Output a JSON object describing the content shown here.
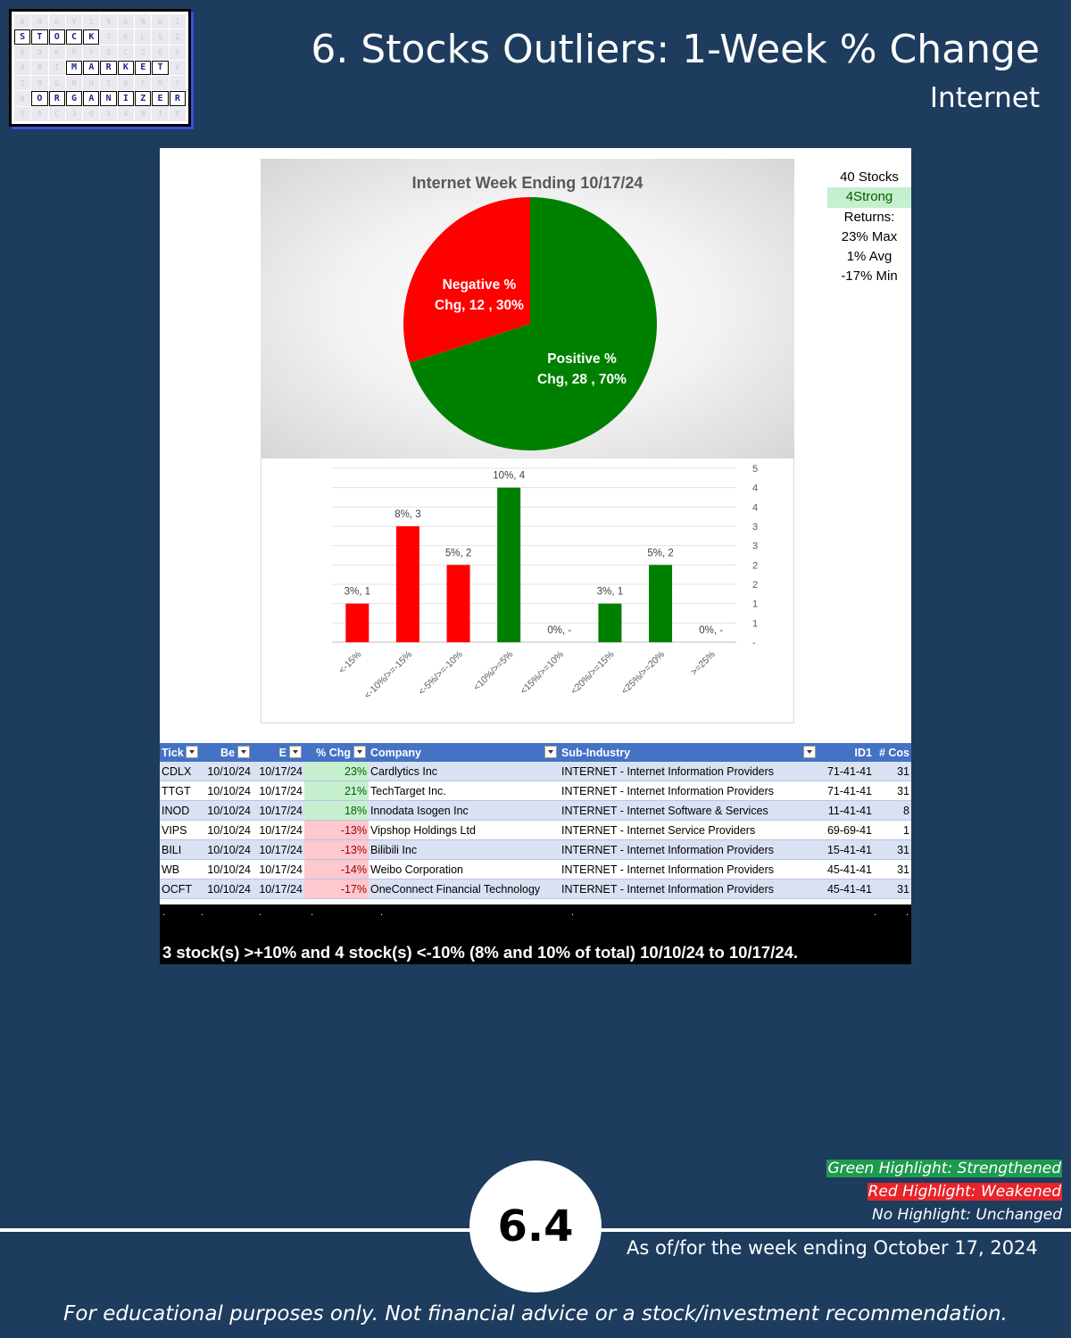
{
  "header": {
    "title": "6. Stocks Outliers: 1-Week % Change",
    "subtitle": "Internet"
  },
  "logo": {
    "row1": [
      "S",
      "T",
      "O",
      "C",
      "K"
    ],
    "row2": [
      "M",
      "A",
      "R",
      "K",
      "E",
      "T"
    ],
    "row3": [
      "O",
      "R",
      "G",
      "A",
      "N",
      "I",
      "Z",
      "E",
      "R"
    ]
  },
  "stats": {
    "stocks": "40 Stocks",
    "strong": "4Strong",
    "returns_label": "Returns:",
    "max": "23% Max",
    "avg": "1% Avg",
    "min": "-17% Min"
  },
  "chart_data": [
    {
      "type": "pie",
      "title": "Internet Week Ending 10/17/24",
      "slices": [
        {
          "name": "Positive % Chg",
          "label_line1": "Positive %",
          "label_line2": "Chg,  28 , 70%",
          "value": 28,
          "pct": 70,
          "color": "#008000"
        },
        {
          "name": "Negative % Chg",
          "label_line1": "Negative %",
          "label_line2": "Chg,  12 , 30%",
          "value": 12,
          "pct": 30,
          "color": "#ff0000"
        }
      ]
    },
    {
      "type": "bar",
      "categories": [
        "<-15%",
        "<-10%/>=-15%",
        "<-5%/>=-10%",
        "<10%/>=5%",
        "<15%/>=10%",
        "<20%/>=15%",
        "<25%/>=20%",
        ">=25%"
      ],
      "values": [
        1,
        3,
        2,
        4,
        0,
        1,
        2,
        0
      ],
      "data_labels": [
        "3%,  1",
        "8%,  3",
        "5%,  2",
        "10%,  4",
        "0%,  -",
        "3%,  1",
        "5%,  2",
        "0%,  -"
      ],
      "colors": [
        "#ff0000",
        "#ff0000",
        "#ff0000",
        "#008000",
        "#008000",
        "#008000",
        "#008000",
        "#008000"
      ],
      "ylim": [
        0,
        4.5
      ],
      "ytick_labels": [
        "-",
        "1",
        "1",
        "2",
        "2",
        "3",
        "3",
        "4",
        "4",
        "5"
      ],
      "y_axis_position": "right",
      "grid": true
    }
  ],
  "table": {
    "headers": [
      "Tick",
      "Be",
      "E",
      "% Chg",
      "Company",
      "Sub-Industry",
      "ID1",
      "# Cos"
    ],
    "rows": [
      {
        "tick": "CDLX",
        "begin": "10/10/24",
        "end": "10/17/24",
        "chg": "23%",
        "dir": "pos",
        "company": "Cardlytics Inc",
        "sub": "INTERNET - Internet Information Providers",
        "id1": "71-41-41",
        "cos": "31"
      },
      {
        "tick": "TTGT",
        "begin": "10/10/24",
        "end": "10/17/24",
        "chg": "21%",
        "dir": "pos",
        "company": "TechTarget Inc.",
        "sub": "INTERNET - Internet Information Providers",
        "id1": "71-41-41",
        "cos": "31"
      },
      {
        "tick": "INOD",
        "begin": "10/10/24",
        "end": "10/17/24",
        "chg": "18%",
        "dir": "pos",
        "company": "Innodata Isogen Inc",
        "sub": "INTERNET - Internet Software & Services",
        "id1": "11-41-41",
        "cos": "8"
      },
      {
        "tick": "VIPS",
        "begin": "10/10/24",
        "end": "10/17/24",
        "chg": "-13%",
        "dir": "neg",
        "company": "Vipshop Holdings Ltd",
        "sub": "INTERNET - Internet Service Providers",
        "id1": "69-69-41",
        "cos": "1"
      },
      {
        "tick": "BILI",
        "begin": "10/10/24",
        "end": "10/17/24",
        "chg": "-13%",
        "dir": "neg",
        "company": "Bilibili Inc",
        "sub": "INTERNET - Internet Information Providers",
        "id1": "15-41-41",
        "cos": "31"
      },
      {
        "tick": "WB",
        "begin": "10/10/24",
        "end": "10/17/24",
        "chg": "-14%",
        "dir": "neg",
        "company": "Weibo Corporation",
        "sub": "INTERNET - Internet Information Providers",
        "id1": "45-41-41",
        "cos": "31"
      },
      {
        "tick": "OCFT",
        "begin": "10/10/24",
        "end": "10/17/24",
        "chg": "-17%",
        "dir": "neg",
        "company": "OneConnect Financial Technology",
        "sub": "INTERNET - Internet Information Providers",
        "id1": "45-41-41",
        "cos": "31"
      }
    ]
  },
  "summary": "3 stock(s) >+10% and 4 stock(s) <-10% (8% and 10% of total) 10/10/24 to 10/17/24.",
  "legend": {
    "green": "Green Highlight: Strengthened",
    "red": "Red Highlight: Weakened",
    "none": "No Highlight: Unchanged"
  },
  "page_number": "6.4",
  "asof": "As of/for the week ending October 17, 2024",
  "disclaimer": "For educational purposes only. Not financial advice or a stock/investment recommendation."
}
